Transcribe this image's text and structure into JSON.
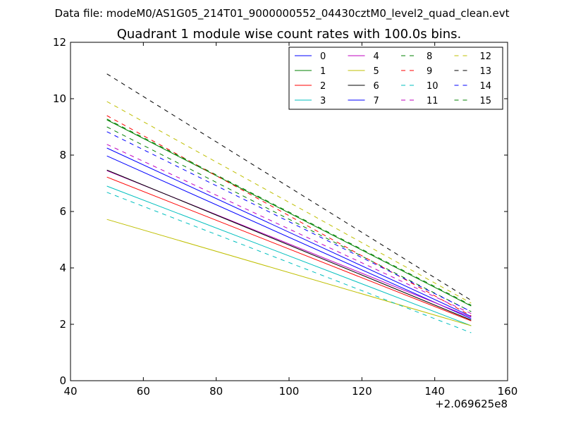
{
  "figure": {
    "suptitle": "Data file: modeM0/AS1G05_214T01_9000000552_04430cztM0_level2_quad_clean.evt"
  },
  "chart_data": {
    "type": "line",
    "title": "Quadrant 1 module wise count rates with 100.0s bins.",
    "xlabel": "",
    "ylabel": "",
    "x_offset_label": "+2.069625e8",
    "xlim": [
      40,
      160
    ],
    "ylim": [
      0,
      12
    ],
    "xticks": [
      "40",
      "60",
      "80",
      "100",
      "120",
      "140",
      "160"
    ],
    "yticks": [
      "0",
      "2",
      "4",
      "6",
      "8",
      "10",
      "12"
    ],
    "grid": false,
    "legend_position": "top-right",
    "legend_columns": 4,
    "x": [
      50,
      150
    ],
    "series": [
      {
        "name": "0",
        "color": "#0000ff",
        "dash": "solid",
        "values": [
          7.97,
          2.2
        ]
      },
      {
        "name": "1",
        "color": "#008000",
        "dash": "solid",
        "values": [
          9.25,
          2.65
        ]
      },
      {
        "name": "2",
        "color": "#ff0000",
        "dash": "solid",
        "values": [
          7.22,
          2.12
        ]
      },
      {
        "name": "3",
        "color": "#00bfbf",
        "dash": "solid",
        "values": [
          6.9,
          1.95
        ]
      },
      {
        "name": "4",
        "color": "#bf00bf",
        "dash": "solid",
        "values": [
          7.45,
          2.25
        ]
      },
      {
        "name": "5",
        "color": "#bfbf00",
        "dash": "solid",
        "values": [
          5.72,
          1.95
        ]
      },
      {
        "name": "6",
        "color": "#000000",
        "dash": "solid",
        "values": [
          7.47,
          2.15
        ]
      },
      {
        "name": "7",
        "color": "#0000ff",
        "dash": "solid",
        "values": [
          8.25,
          2.28
        ]
      },
      {
        "name": "8",
        "color": "#008000",
        "dash": "dashed",
        "values": [
          9.0,
          2.45
        ]
      },
      {
        "name": "9",
        "color": "#ff0000",
        "dash": "dashed",
        "values": [
          9.4,
          2.3
        ]
      },
      {
        "name": "10",
        "color": "#00bfbf",
        "dash": "dashed",
        "values": [
          6.68,
          1.7
        ]
      },
      {
        "name": "11",
        "color": "#bf00bf",
        "dash": "dashed",
        "values": [
          8.38,
          2.38
        ]
      },
      {
        "name": "12",
        "color": "#bfbf00",
        "dash": "dashed",
        "values": [
          9.9,
          2.75
        ]
      },
      {
        "name": "13",
        "color": "#000000",
        "dash": "dashed",
        "values": [
          10.88,
          2.85
        ]
      },
      {
        "name": "14",
        "color": "#0000ff",
        "dash": "dashed",
        "values": [
          8.83,
          2.45
        ]
      },
      {
        "name": "15",
        "color": "#008000",
        "dash": "dashed",
        "values": [
          9.28,
          2.68
        ]
      }
    ]
  }
}
